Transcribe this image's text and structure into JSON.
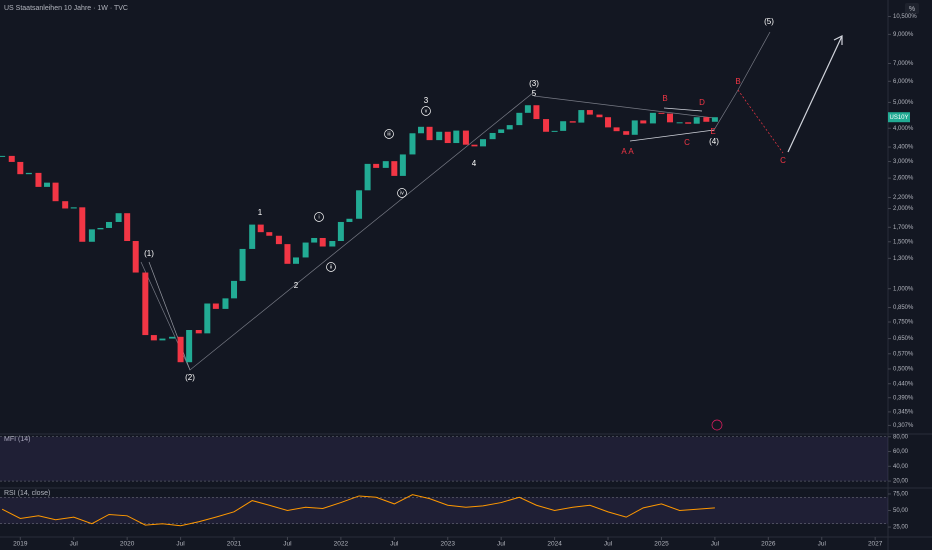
{
  "chart_data": [
    {
      "type": "candlestick",
      "title": "US Staatsanleihen 10 Jahre · 1W · TVC",
      "log_scale": true,
      "up_color": "#22ab94",
      "down_color": "#f23645",
      "xlim": [
        2018.81,
        2027.12
      ],
      "xticks": [
        {
          "value": 2019,
          "label": "2019"
        },
        {
          "value": 2019.5,
          "label": "Jul"
        },
        {
          "value": 2020,
          "label": "2020"
        },
        {
          "value": 2020.5,
          "label": "Jul"
        },
        {
          "value": 2021,
          "label": "2021"
        },
        {
          "value": 2021.5,
          "label": "Jul"
        },
        {
          "value": 2022,
          "label": "2022"
        },
        {
          "value": 2022.5,
          "label": "Jul"
        },
        {
          "value": 2023,
          "label": "2023"
        },
        {
          "value": 2023.5,
          "label": "Jul"
        },
        {
          "value": 2024,
          "label": "2024"
        },
        {
          "value": 2024.5,
          "label": "Jul"
        },
        {
          "value": 2025,
          "label": "2025"
        },
        {
          "value": 2025.5,
          "label": "Jul"
        },
        {
          "value": 2026,
          "label": "2026"
        },
        {
          "value": 2026.5,
          "label": "Jul"
        },
        {
          "value": 2027,
          "label": "2027"
        }
      ],
      "ylim": [
        0.29,
        11.6
      ],
      "yticks": [
        {
          "value": 10.5,
          "label": "10,500%"
        },
        {
          "value": 9,
          "label": "9,000%"
        },
        {
          "value": 7,
          "label": "7,000%"
        },
        {
          "value": 6,
          "label": "6,000%"
        },
        {
          "value": 5,
          "label": "5,000%"
        },
        {
          "value": 4,
          "label": "4,000%"
        },
        {
          "value": 3.4,
          "label": "3,400%"
        },
        {
          "value": 3,
          "label": "3,000%"
        },
        {
          "value": 2.6,
          "label": "2,600%"
        },
        {
          "value": 2.2,
          "label": "2,200%"
        },
        {
          "value": 2,
          "label": "2,000%"
        },
        {
          "value": 1.7,
          "label": "1,700%"
        },
        {
          "value": 1.5,
          "label": "1,500%"
        },
        {
          "value": 1.3,
          "label": "1,300%"
        },
        {
          "value": 1,
          "label": "1,000%"
        },
        {
          "value": 0.85,
          "label": "0,850%"
        },
        {
          "value": 0.75,
          "label": "0,750%"
        },
        {
          "value": 0.65,
          "label": "0,650%"
        },
        {
          "value": 0.57,
          "label": "0,570%"
        },
        {
          "value": 0.5,
          "label": "0,500%"
        },
        {
          "value": 0.44,
          "label": "0,440%"
        },
        {
          "value": 0.39,
          "label": "0,390%"
        },
        {
          "value": 0.345,
          "label": "0,345%"
        },
        {
          "value": 0.307,
          "label": "0,307%"
        }
      ],
      "scale_button": "%",
      "price_tag": "US10Y",
      "x": [
        2018.83,
        2018.92,
        2019.0,
        2019.08,
        2019.17,
        2019.25,
        2019.33,
        2019.42,
        2019.5,
        2019.58,
        2019.67,
        2019.75,
        2019.83,
        2019.92,
        2020.0,
        2020.08,
        2020.17,
        2020.25,
        2020.33,
        2020.42,
        2020.5,
        2020.58,
        2020.67,
        2020.75,
        2020.83,
        2020.92,
        2021.0,
        2021.08,
        2021.17,
        2021.25,
        2021.33,
        2021.42,
        2021.5,
        2021.58,
        2021.67,
        2021.75,
        2021.83,
        2021.92,
        2022.0,
        2022.08,
        2022.17,
        2022.25,
        2022.33,
        2022.42,
        2022.5,
        2022.58,
        2022.67,
        2022.75,
        2022.83,
        2022.92,
        2023.0,
        2023.08,
        2023.17,
        2023.25,
        2023.33,
        2023.42,
        2023.5,
        2023.58,
        2023.67,
        2023.75,
        2023.83,
        2023.92,
        2024.0,
        2024.08,
        2024.17,
        2024.25,
        2024.33,
        2024.42,
        2024.5,
        2024.58,
        2024.67,
        2024.75,
        2024.83,
        2024.92,
        2025.0,
        2025.08,
        2025.17,
        2025.25,
        2025.33,
        2025.42,
        2025.5
      ],
      "series": [
        {
          "name": "US10Y",
          "values": [
            3.15,
            2.99,
            2.69,
            2.72,
            2.41,
            2.5,
            2.13,
            2.0,
            2.02,
            1.5,
            1.67,
            1.69,
            1.78,
            1.92,
            1.51,
            1.15,
            0.67,
            0.64,
            0.65,
            0.66,
            0.53,
            0.7,
            0.68,
            0.88,
            0.84,
            0.92,
            1.07,
            1.41,
            1.74,
            1.63,
            1.58,
            1.47,
            1.24,
            1.31,
            1.49,
            1.55,
            1.44,
            1.51,
            1.78,
            1.83,
            2.34,
            2.94,
            2.84,
            3.01,
            2.65,
            3.19,
            3.83,
            4.05,
            3.61,
            3.88,
            3.52,
            3.92,
            3.47,
            3.42,
            3.64,
            3.84,
            3.96,
            4.11,
            4.57,
            4.88,
            4.33,
            3.88,
            3.91,
            4.25,
            4.2,
            4.68,
            4.5,
            4.4,
            4.03,
            3.9,
            3.78,
            4.28,
            4.17,
            4.57,
            4.54,
            4.21,
            4.21,
            4.16,
            4.4,
            4.23,
            4.4
          ]
        }
      ],
      "annotations": [
        {
          "text": "(1)",
          "color": "#ffffff"
        },
        {
          "text": "(2)",
          "color": "#ffffff"
        },
        {
          "text": "1",
          "color": "#ffffff"
        },
        {
          "text": "2",
          "color": "#ffffff"
        },
        {
          "text": "i",
          "color": "#ffffff",
          "circled": true
        },
        {
          "text": "ii",
          "color": "#ffffff",
          "circled": true
        },
        {
          "text": "iii",
          "color": "#ffffff",
          "circled": true
        },
        {
          "text": "iv",
          "color": "#ffffff",
          "circled": true
        },
        {
          "text": "v",
          "color": "#ffffff",
          "circled": true
        },
        {
          "text": "3",
          "color": "#ffffff"
        },
        {
          "text": "4",
          "color": "#ffffff"
        },
        {
          "text": "5",
          "color": "#ffffff"
        },
        {
          "text": "(3)",
          "color": "#ffffff"
        },
        {
          "text": "(4)",
          "color": "#ffffff"
        },
        {
          "text": "(5)",
          "color": "#ffffff"
        },
        {
          "text": "A",
          "color": "#f23645"
        },
        {
          "text": "A",
          "color": "#f23645"
        },
        {
          "text": "B",
          "color": "#f23645"
        },
        {
          "text": "C",
          "color": "#f23645"
        },
        {
          "text": "D",
          "color": "#f23645"
        },
        {
          "text": "E",
          "color": "#f23645"
        },
        {
          "text": "B",
          "color": "#f23645"
        },
        {
          "text": "C",
          "color": "#f23645"
        }
      ]
    },
    {
      "type": "line",
      "title": "MFI (14)",
      "ylim": [
        12,
        81
      ],
      "band": [
        20,
        80
      ],
      "yticks": [
        {
          "value": 80,
          "label": "80,00"
        },
        {
          "value": 60,
          "label": "60,00"
        },
        {
          "value": 40,
          "label": "40,00"
        },
        {
          "value": 20,
          "label": "20,00"
        }
      ]
    },
    {
      "type": "line",
      "title": "RSI (14, close)",
      "ylim": [
        13,
        81
      ],
      "band": [
        30,
        70
      ],
      "color": "#ff9800",
      "yticks": [
        {
          "value": 75,
          "label": "75,00"
        },
        {
          "value": 50,
          "label": "50,00"
        },
        {
          "value": 25,
          "label": "25,00"
        }
      ],
      "x": [
        2018.83,
        2019.0,
        2019.17,
        2019.33,
        2019.5,
        2019.67,
        2019.83,
        2020.0,
        2020.17,
        2020.33,
        2020.5,
        2020.67,
        2020.83,
        2021.0,
        2021.17,
        2021.33,
        2021.5,
        2021.67,
        2021.83,
        2022.0,
        2022.17,
        2022.33,
        2022.5,
        2022.67,
        2022.83,
        2023.0,
        2023.17,
        2023.33,
        2023.5,
        2023.67,
        2023.83,
        2024.0,
        2024.17,
        2024.33,
        2024.5,
        2024.67,
        2024.83,
        2025.0,
        2025.17,
        2025.33,
        2025.5
      ],
      "values": [
        52,
        38,
        42,
        36,
        40,
        30,
        44,
        42,
        28,
        30,
        27,
        33,
        40,
        48,
        65,
        58,
        50,
        55,
        53,
        62,
        72,
        70,
        60,
        74,
        68,
        58,
        55,
        57,
        62,
        70,
        58,
        50,
        55,
        58,
        48,
        40,
        54,
        60,
        50,
        52,
        54
      ]
    }
  ]
}
